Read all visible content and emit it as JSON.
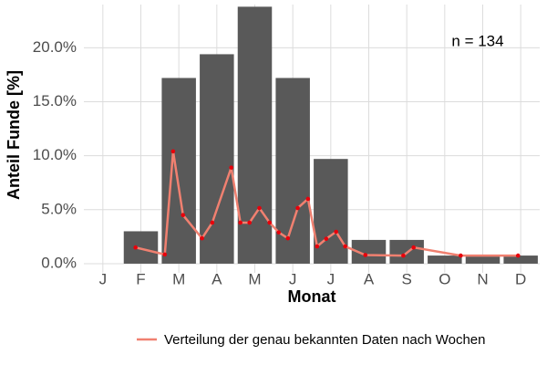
{
  "chart_data": {
    "type": "bar",
    "annotation": "n = 134",
    "x_label": "Monat",
    "y_label": "Anteil Funde [%]",
    "categories": [
      "J",
      "F",
      "M",
      "A",
      "M",
      "J",
      "J",
      "A",
      "S",
      "O",
      "N",
      "D"
    ],
    "values": [
      0,
      3.0,
      17.2,
      19.4,
      23.8,
      17.2,
      9.7,
      2.2,
      2.2,
      0.75,
      0.75,
      0.75
    ],
    "color": "#595959",
    "series": [
      {
        "name": "Verteilung der genau bekannten Daten nach Wochen",
        "color": "#f08070",
        "point_color": "#e8000b",
        "type": "line",
        "x": [
          1.86,
          2.63,
          2.85,
          3.11,
          3.61,
          3.88,
          4.38,
          4.62,
          4.86,
          5.12,
          5.39,
          5.63,
          5.87,
          6.13,
          6.4,
          6.64,
          6.88,
          7.14,
          7.38,
          7.91,
          8.91,
          9.18,
          10.42,
          11.93
        ],
        "values": [
          1.5,
          0.85,
          10.4,
          4.5,
          2.35,
          3.8,
          8.9,
          3.8,
          3.8,
          5.15,
          3.8,
          2.9,
          2.35,
          5.15,
          6.0,
          1.6,
          2.3,
          2.95,
          1.6,
          0.8,
          0.75,
          1.5,
          0.75,
          0.75
        ]
      }
    ],
    "xlim": [
      0.5,
      12.5
    ],
    "ylim": [
      -0.85,
      24.0
    ],
    "yticks": [
      {
        "value": 0,
        "label": "0.0%"
      },
      {
        "value": 5,
        "label": "5.0%"
      },
      {
        "value": 10,
        "label": "10.0%"
      },
      {
        "value": 15,
        "label": "15.0%"
      },
      {
        "value": 20,
        "label": "20.0%"
      }
    ],
    "grid": true,
    "legend": "bottom"
  }
}
